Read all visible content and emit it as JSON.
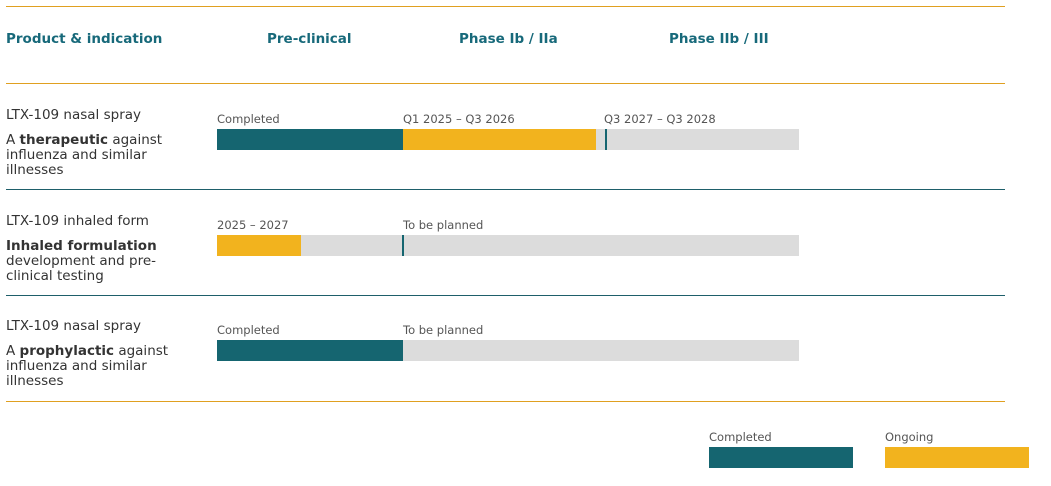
{
  "header": {
    "product": "Product & indication",
    "phases": [
      "Pre-clinical",
      "Phase Ib / IIa",
      "Phase IIb / III"
    ]
  },
  "rows": [
    {
      "name": "LTX-109 nasal spray",
      "description": [
        "A ",
        "therapeutic",
        " against influenza and similar illnesses"
      ],
      "labels": [
        "Completed",
        "Q1 2025 – Q3 2026",
        "Q3 2027 – Q3 2028"
      ]
    },
    {
      "name": "LTX-109 inhaled form",
      "description": [
        "Inhaled formulation",
        " development and pre-clinical testing"
      ],
      "labels": [
        "2025 – 2027",
        "To be planned"
      ]
    },
    {
      "name": "LTX-109 nasal spray",
      "description": [
        "A ",
        "prophylactic",
        " against influenza and similar illnesses"
      ],
      "labels": [
        "Completed",
        "To be planned"
      ]
    }
  ],
  "legend": [
    "Completed",
    "Ongoing"
  ]
}
